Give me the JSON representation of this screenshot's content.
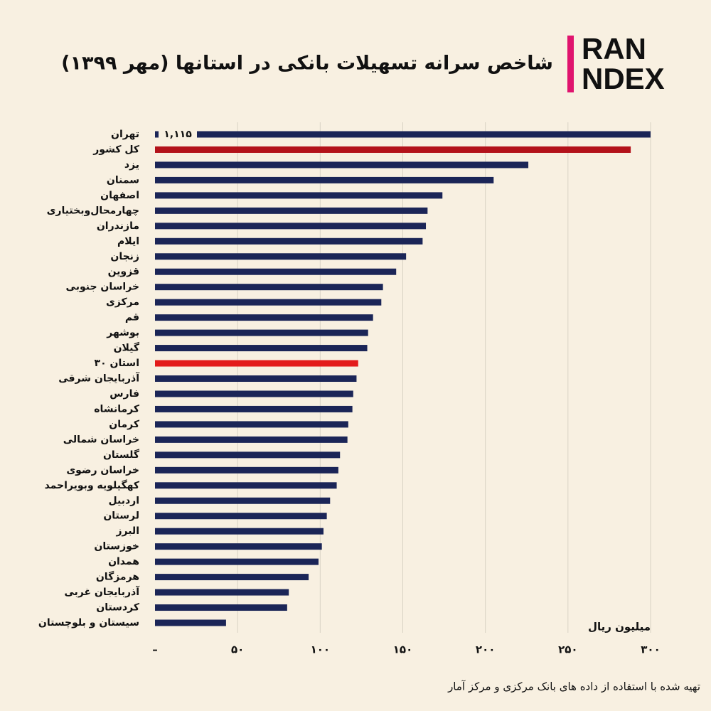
{
  "logo": [
    "RAN",
    "NDEX"
  ],
  "chart_data": {
    "type": "hbar",
    "title": "شاخص سرانه تسهیلات بانکی در استانها (مهر ۱۳۹۹)",
    "x_label": "میلیون ریال",
    "source": "تهیه شده با استفاده از داده های بانک مرکزی و مرکز آمار",
    "categories": [
      "تهران",
      "کل کشور",
      "یزد",
      "سمنان",
      "اصفهان",
      "چهارمحال‌وبختیاری",
      "مازندران",
      "ایلام",
      "زنجان",
      "قزوین",
      "خراسان جنوبی",
      "مرکزی",
      "قم",
      "بوشهر",
      "گیلان",
      "۳۰ استان",
      "آذربایجان شرقی",
      "فارس",
      "کرمانشاه",
      "کرمان",
      "خراسان شمالی",
      "گلستان",
      "خراسان رضوی",
      "کهگیلویه وبویراحمد",
      "اردبیل",
      "لرستان",
      "البرز",
      "خوزستان",
      "همدان",
      "هرمزگان",
      "آذربایجان غربی",
      "کردستان",
      "سیستان و بلوچستان"
    ],
    "values": [
      1115,
      288,
      226,
      205,
      174,
      165,
      164,
      162,
      152,
      146,
      138,
      137,
      132,
      129,
      128.5,
      123,
      122,
      120,
      119.5,
      117,
      116.5,
      112,
      111,
      110,
      106,
      104,
      102,
      101,
      99,
      93,
      81,
      80,
      43
    ],
    "value_labels": [
      "۱,۱۱۵",
      null,
      null,
      null,
      null,
      null,
      null,
      null,
      null,
      null,
      null,
      null,
      null,
      null,
      null,
      null,
      null,
      null,
      null,
      null,
      null,
      null,
      null,
      null,
      null,
      null,
      null,
      null,
      null,
      null,
      null,
      null,
      null
    ],
    "colors": [
      "#1b2557",
      "#b3121a",
      "#1b2557",
      "#1b2557",
      "#1b2557",
      "#1b2557",
      "#1b2557",
      "#1b2557",
      "#1b2557",
      "#1b2557",
      "#1b2557",
      "#1b2557",
      "#1b2557",
      "#1b2557",
      "#1b2557",
      "#e31b1b",
      "#1b2557",
      "#1b2557",
      "#1b2557",
      "#1b2557",
      "#1b2557",
      "#1b2557",
      "#1b2557",
      "#1b2557",
      "#1b2557",
      "#1b2557",
      "#1b2557",
      "#1b2557",
      "#1b2557",
      "#1b2557",
      "#1b2557",
      "#1b2557",
      "#1b2557"
    ],
    "xlim": [
      0,
      300
    ],
    "xticks": [
      {
        "value": 0,
        "label": "–"
      },
      {
        "value": 50,
        "label": "۵۰"
      },
      {
        "value": 100,
        "label": "۱۰۰"
      },
      {
        "value": 150,
        "label": "۱۵۰"
      },
      {
        "value": 200,
        "label": "۲۰۰"
      },
      {
        "value": 250,
        "label": "۲۵۰"
      },
      {
        "value": 300,
        "label": "۳۰۰"
      }
    ],
    "grid": true
  }
}
